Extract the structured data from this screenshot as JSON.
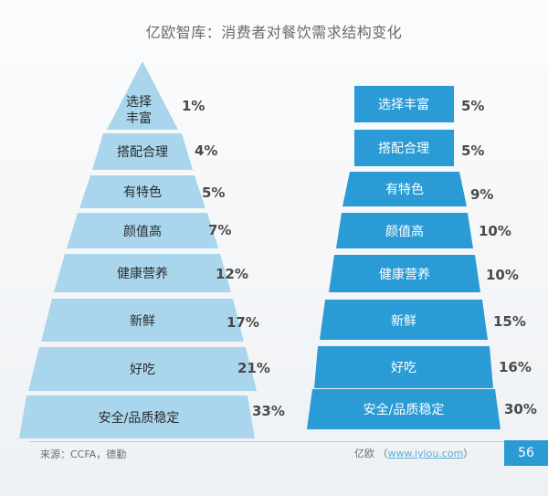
{
  "title": "亿欧智库：消费者对餐饮需求结构变化",
  "left_pyramid": {
    "color": "#a9d6ec",
    "items": [
      {
        "label_lines": [
          "选择",
          "丰富"
        ],
        "percent": "1%"
      },
      {
        "label_lines": [
          "搭配合理"
        ],
        "percent": "4%"
      },
      {
        "label_lines": [
          "有特色"
        ],
        "percent": "5%"
      },
      {
        "label_lines": [
          "颜值高"
        ],
        "percent": "7%"
      },
      {
        "label_lines": [
          "健康营养"
        ],
        "percent": "12%"
      },
      {
        "label_lines": [
          "新鲜"
        ],
        "percent": "17%"
      },
      {
        "label_lines": [
          "好吃"
        ],
        "percent": "21%"
      },
      {
        "label_lines": [
          "安全/品质稳定"
        ],
        "percent": "33%"
      }
    ]
  },
  "right_pyramid": {
    "color": "#2a9bd4",
    "items": [
      {
        "label": "选择丰富",
        "percent": "5%"
      },
      {
        "label": "搭配合理",
        "percent": "5%"
      },
      {
        "label": "有特色",
        "percent": "9%"
      },
      {
        "label": "颜值高",
        "percent": "10%"
      },
      {
        "label": "健康营养",
        "percent": "10%"
      },
      {
        "label": "新鲜",
        "percent": "15%"
      },
      {
        "label": "好吃",
        "percent": "16%"
      },
      {
        "label": "安全/品质稳定",
        "percent": "30%"
      }
    ]
  },
  "footer": {
    "source": "来源：CCFA，德勤",
    "brand": "亿欧",
    "url": "www.iyiou.com",
    "page": "56"
  }
}
